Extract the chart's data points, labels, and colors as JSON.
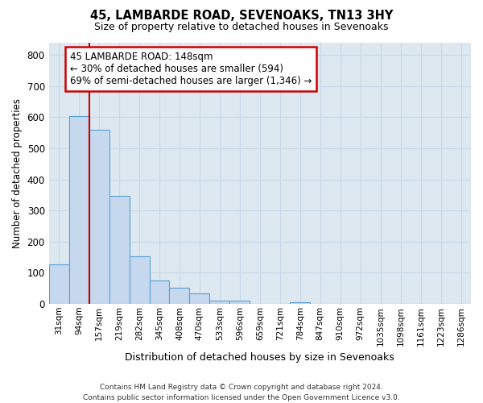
{
  "title": "45, LAMBARDE ROAD, SEVENOAKS, TN13 3HY",
  "subtitle": "Size of property relative to detached houses in Sevenoaks",
  "xlabel": "Distribution of detached houses by size in Sevenoaks",
  "ylabel": "Number of detached properties",
  "categories": [
    "31sqm",
    "94sqm",
    "157sqm",
    "219sqm",
    "282sqm",
    "345sqm",
    "408sqm",
    "470sqm",
    "533sqm",
    "596sqm",
    "659sqm",
    "721sqm",
    "784sqm",
    "847sqm",
    "910sqm",
    "972sqm",
    "1035sqm",
    "1098sqm",
    "1161sqm",
    "1223sqm",
    "1286sqm"
  ],
  "values": [
    127,
    603,
    558,
    348,
    152,
    75,
    52,
    33,
    12,
    11,
    0,
    0,
    5,
    0,
    0,
    0,
    0,
    0,
    0,
    0,
    0
  ],
  "bar_color": "#c5d8ee",
  "bar_edge_color": "#5a9fd4",
  "annotation_text": "45 LAMBARDE ROAD: 148sqm\n← 30% of detached houses are smaller (594)\n69% of semi-detached houses are larger (1,346) →",
  "annotation_box_color": "#ffffff",
  "annotation_box_edge_color": "#cc0000",
  "vline_color": "#cc0000",
  "grid_color": "#c8d8e8",
  "background_color": "#dde8f0",
  "ylim": [
    0,
    840
  ],
  "yticks": [
    0,
    100,
    200,
    300,
    400,
    500,
    600,
    700,
    800
  ],
  "footer": "Contains HM Land Registry data © Crown copyright and database right 2024.\nContains public sector information licensed under the Open Government Licence v3.0."
}
